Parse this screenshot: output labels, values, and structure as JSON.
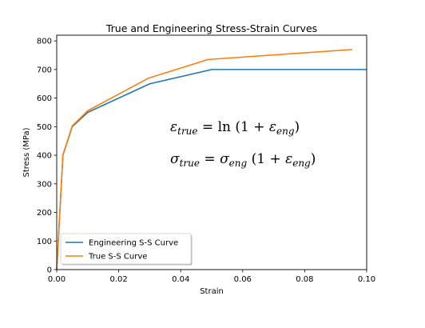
{
  "chart_data": {
    "type": "line",
    "title": "True and Engineering Stress-Strain Curves",
    "xlabel": "Strain",
    "ylabel": "Stress (MPa)",
    "xlim": [
      0.0,
      0.1
    ],
    "ylim": [
      0,
      820
    ],
    "x_ticks": [
      0.0,
      0.02,
      0.04,
      0.06,
      0.08,
      0.1
    ],
    "x_tick_labels": [
      "0.00",
      "0.02",
      "0.04",
      "0.06",
      "0.08",
      "0.10"
    ],
    "y_ticks": [
      0,
      100,
      200,
      300,
      400,
      500,
      600,
      700,
      800
    ],
    "y_tick_labels": [
      "0",
      "100",
      "200",
      "300",
      "400",
      "500",
      "600",
      "700",
      "800"
    ],
    "grid": false,
    "legend_position": "lower-left",
    "series": [
      {
        "name": "Engineering S-S Curve",
        "color": "#1f77b4",
        "x": [
          0.0,
          0.002,
          0.005,
          0.01,
          0.03,
          0.05,
          0.1
        ],
        "y": [
          0,
          400,
          500,
          550,
          650,
          700,
          700
        ]
      },
      {
        "name": "True S-S Curve",
        "color": "#ff7f0e",
        "x": [
          0.0,
          0.002,
          0.00499,
          0.00995,
          0.02956,
          0.04879,
          0.09531
        ],
        "y": [
          0,
          400.8,
          502.5,
          555.5,
          669.5,
          735.0,
          770.0
        ]
      }
    ],
    "annotations": {
      "eq1": {
        "lhs": "ε",
        "lhs_sub": "true",
        "rhs_fn": "ln",
        "rhs_open": " (1 + ",
        "rhs_var": "ε",
        "rhs_sub": "eng",
        "rhs_close": ")"
      },
      "eq2": {
        "lhs": "σ",
        "lhs_sub": "true",
        "rhs_var": "σ",
        "rhs_sub": "eng",
        "rhs_open": " (1 + ",
        "rhs_var2": "ε",
        "rhs_sub2": "eng",
        "rhs_close": ")"
      }
    }
  }
}
